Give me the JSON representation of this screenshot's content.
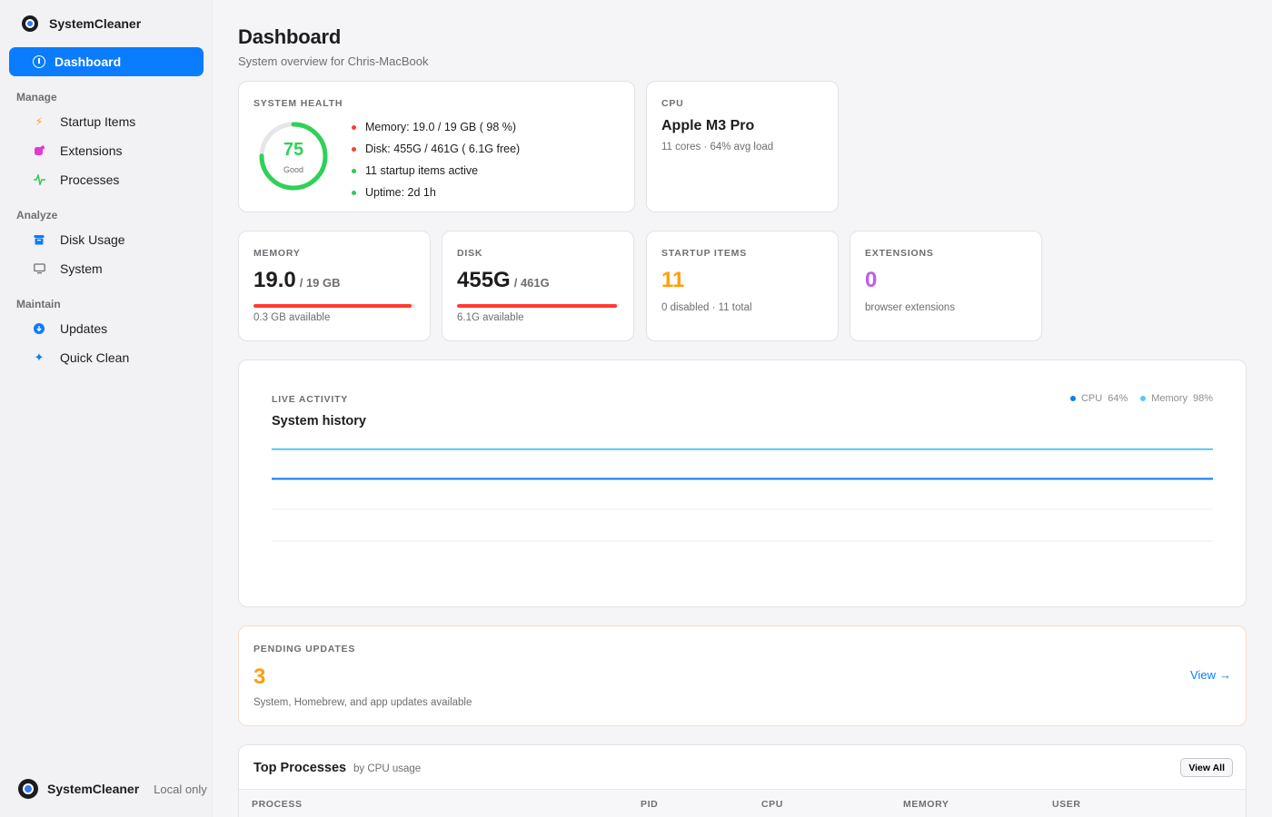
{
  "sidebar": {
    "brand": "SystemCleaner",
    "active_item": "Dashboard",
    "sections": [
      {
        "title": "Manage",
        "items": [
          "Startup Items",
          "Extensions",
          "Processes"
        ]
      },
      {
        "title": "Analyze",
        "items": [
          "Disk Usage",
          "System"
        ]
      },
      {
        "title": "Maintain",
        "items": [
          "Updates",
          "Quick Clean"
        ]
      }
    ],
    "footer": {
      "name": "SystemCleaner",
      "subtitle": "Local only"
    }
  },
  "header": {
    "title": "Dashboard",
    "subtitle": "System overview for Chris-MacBook"
  },
  "health": {
    "label": "SYSTEM HEALTH",
    "score": "75",
    "score_value": 75,
    "score_label": "Good",
    "items": [
      {
        "text": "Memory: 19.0 / 19 GB (  98  %)",
        "status": "red"
      },
      {
        "text": "Disk:  455G  /  461G  (  6.1G  free)",
        "status": "red"
      },
      {
        "text": "11 startup items active",
        "status": "green"
      },
      {
        "text": "Uptime: 2d 1h",
        "status": "green"
      }
    ]
  },
  "cpu": {
    "label": "CPU",
    "name": "Apple M3 Pro",
    "detail": "11 cores · 64% avg load"
  },
  "stats": {
    "memory": {
      "label": "MEMORY",
      "value": "19.0",
      "unit": "/ 19 GB",
      "sub": "0.3 GB available",
      "fill": 0.98
    },
    "disk": {
      "label": "DISK",
      "value": "455G",
      "unit": "/ 461G",
      "sub": "6.1G available",
      "fill": 0.987
    },
    "startup": {
      "label": "STARTUP ITEMS",
      "value": "11",
      "sub": "0 disabled · 11 total"
    },
    "extensions": {
      "label": "EXTENSIONS",
      "value": "0",
      "sub": "browser extensions"
    }
  },
  "activity": {
    "label": "LIVE ACTIVITY",
    "title": "System history",
    "legend": [
      {
        "name": "CPU",
        "value": "64%",
        "color": "#0a7cff"
      },
      {
        "name": "Memory",
        "value": "98%",
        "color": "#5ac8fa"
      }
    ]
  },
  "chart_data": {
    "type": "line",
    "title": "System history",
    "ylim": [
      0,
      100
    ],
    "grid": true,
    "series": [
      {
        "name": "CPU",
        "values": [
          64,
          64
        ],
        "color": "#0a7cff"
      },
      {
        "name": "Memory",
        "values": [
          98,
          98
        ],
        "color": "#5ac8fa"
      }
    ]
  },
  "updates": {
    "label": "PENDING UPDATES",
    "count": "3",
    "description": "System, Homebrew, and app updates available",
    "link": "View"
  },
  "processes": {
    "title": "Top Processes",
    "subtitle": "by CPU usage",
    "view_all": "View All",
    "columns": [
      "PROCESS",
      "PID",
      "CPU",
      "MEMORY",
      "USER"
    ]
  },
  "colors": {
    "accent": "#0a7cff",
    "good": "#30d158",
    "danger": "#ff3b30",
    "warning": "#ff9f0a",
    "purple": "#bf5af2"
  }
}
